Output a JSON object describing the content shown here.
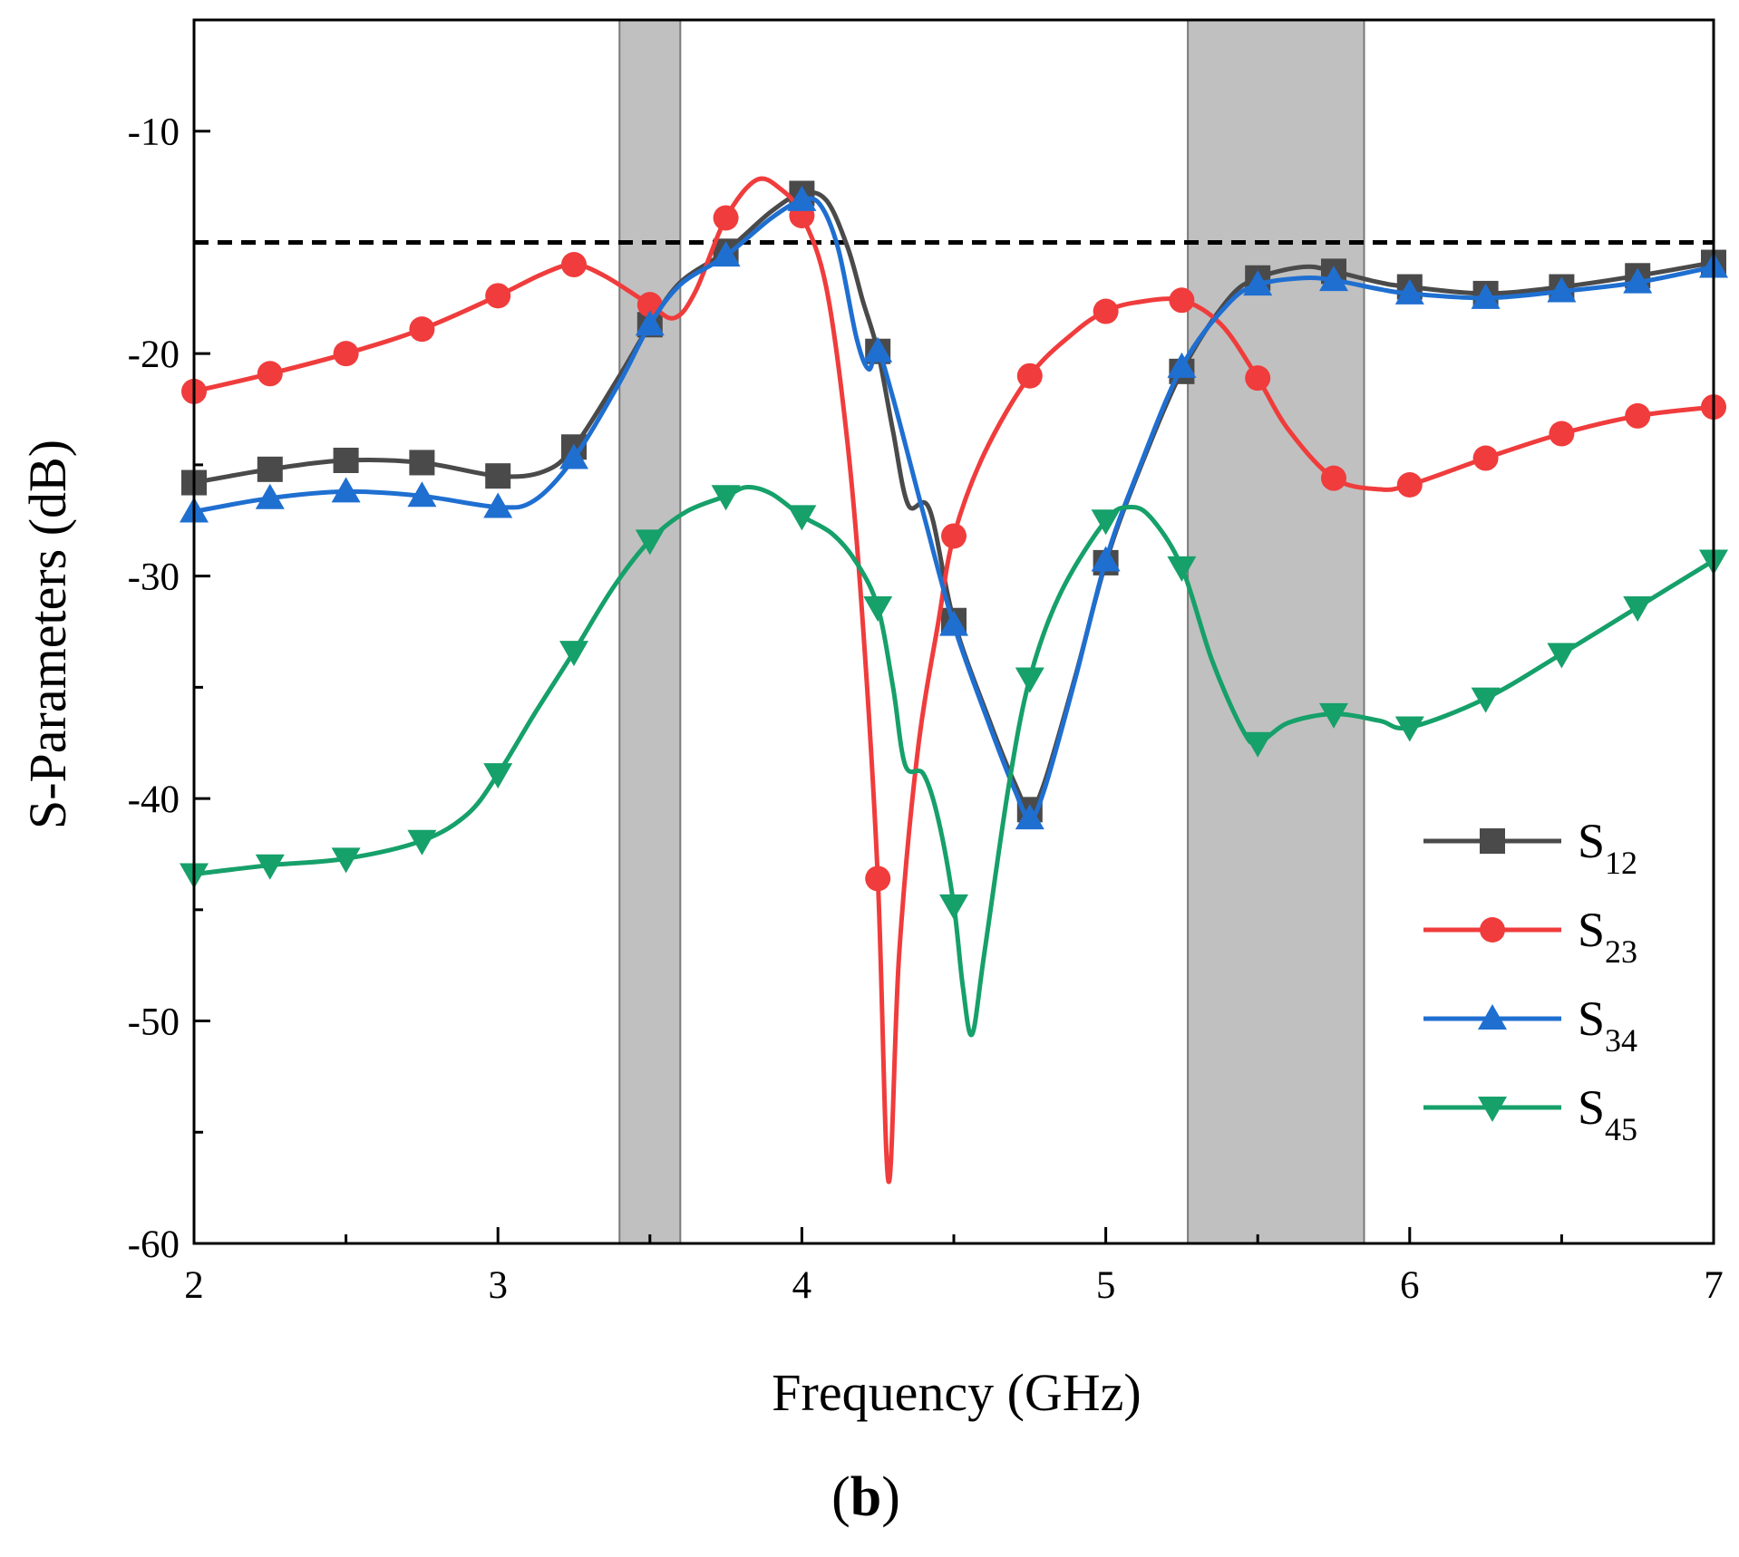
{
  "chart_data": {
    "type": "line",
    "caption": {
      "open": "(",
      "letter": "b",
      "close": ")"
    },
    "xlabel": "Frequency (GHz)",
    "ylabel": "S-Parameters (dB)",
    "xlim": [
      2,
      7
    ],
    "ylim": [
      -60,
      -5
    ],
    "x_ticks": [
      2,
      3,
      4,
      5,
      6,
      7
    ],
    "x_tick_labels": [
      "2",
      "3",
      "4",
      "5",
      "6",
      "7"
    ],
    "y_ticks": [
      -60,
      -50,
      -40,
      -30,
      -20,
      -10
    ],
    "y_tick_labels": [
      "-60",
      "-50",
      "-40",
      "-30",
      "-20",
      "-10"
    ],
    "reference_line": {
      "y": -15,
      "style": "dashed",
      "color": "#000000"
    },
    "shaded_bands": [
      {
        "x0": 3.4,
        "x1": 3.6,
        "color": "#c0c0c0"
      },
      {
        "x0": 5.27,
        "x1": 5.85,
        "color": "#c0c0c0"
      }
    ],
    "legend_position": "bottom-right",
    "series": [
      {
        "name": "S12",
        "label_main": "S",
        "label_sub": "12",
        "color": "#4a4a4a",
        "marker": "square",
        "curve": [
          [
            2,
            -25.8
          ],
          [
            2.25,
            -25.2
          ],
          [
            2.5,
            -24.8
          ],
          [
            2.75,
            -24.9
          ],
          [
            3,
            -25.5
          ],
          [
            3.15,
            -25.3
          ],
          [
            3.25,
            -24.2
          ],
          [
            3.4,
            -21.0
          ],
          [
            3.5,
            -18.7
          ],
          [
            3.6,
            -16.8
          ],
          [
            3.75,
            -15.4
          ],
          [
            3.9,
            -13.6
          ],
          [
            4,
            -12.8
          ],
          [
            4.08,
            -13.1
          ],
          [
            4.15,
            -15.2
          ],
          [
            4.2,
            -17.6
          ],
          [
            4.25,
            -19.9
          ],
          [
            4.3,
            -23.5
          ],
          [
            4.35,
            -26.8
          ],
          [
            4.42,
            -27.0
          ],
          [
            4.5,
            -32.0
          ],
          [
            4.62,
            -36.6
          ],
          [
            4.7,
            -39.3
          ],
          [
            4.75,
            -40.5
          ],
          [
            4.8,
            -39.2
          ],
          [
            4.9,
            -34.5
          ],
          [
            5,
            -29.4
          ],
          [
            5.1,
            -25.6
          ],
          [
            5.25,
            -20.8
          ],
          [
            5.4,
            -17.6
          ],
          [
            5.5,
            -16.6
          ],
          [
            5.65,
            -16.1
          ],
          [
            5.75,
            -16.3
          ],
          [
            5.9,
            -16.8
          ],
          [
            6,
            -17.0
          ],
          [
            6.25,
            -17.3
          ],
          [
            6.5,
            -17.0
          ],
          [
            6.75,
            -16.5
          ],
          [
            7,
            -15.9
          ]
        ],
        "points": [
          [
            2,
            -25.8
          ],
          [
            2.25,
            -25.2
          ],
          [
            2.5,
            -24.8
          ],
          [
            2.75,
            -24.9
          ],
          [
            3,
            -25.5
          ],
          [
            3.25,
            -24.2
          ],
          [
            3.5,
            -18.7
          ],
          [
            3.75,
            -15.4
          ],
          [
            4,
            -12.8
          ],
          [
            4.25,
            -19.9
          ],
          [
            4.5,
            -32.0
          ],
          [
            4.75,
            -40.5
          ],
          [
            5,
            -29.4
          ],
          [
            5.25,
            -20.8
          ],
          [
            5.5,
            -16.6
          ],
          [
            5.75,
            -16.3
          ],
          [
            6,
            -17.0
          ],
          [
            6.25,
            -17.3
          ],
          [
            6.5,
            -17.0
          ],
          [
            6.75,
            -16.5
          ],
          [
            7,
            -15.9
          ]
        ]
      },
      {
        "name": "S23",
        "label_main": "S",
        "label_sub": "23",
        "color": "#f03c3c",
        "marker": "circle",
        "curve": [
          [
            2,
            -21.7
          ],
          [
            2.25,
            -20.9
          ],
          [
            2.5,
            -20.0
          ],
          [
            2.75,
            -18.9
          ],
          [
            3,
            -17.4
          ],
          [
            3.15,
            -16.4
          ],
          [
            3.25,
            -16.0
          ],
          [
            3.35,
            -16.5
          ],
          [
            3.5,
            -17.8
          ],
          [
            3.58,
            -18.4
          ],
          [
            3.65,
            -17.2
          ],
          [
            3.75,
            -13.9
          ],
          [
            3.85,
            -12.2
          ],
          [
            3.93,
            -12.6
          ],
          [
            4,
            -13.8
          ],
          [
            4.08,
            -17.0
          ],
          [
            4.15,
            -24.0
          ],
          [
            4.2,
            -32.0
          ],
          [
            4.25,
            -43.6
          ],
          [
            4.285,
            -57.2
          ],
          [
            4.32,
            -47.0
          ],
          [
            4.38,
            -38.0
          ],
          [
            4.45,
            -32.0
          ],
          [
            4.5,
            -28.2
          ],
          [
            4.6,
            -24.5
          ],
          [
            4.75,
            -21.0
          ],
          [
            4.9,
            -19.0
          ],
          [
            5,
            -18.1
          ],
          [
            5.1,
            -17.7
          ],
          [
            5.25,
            -17.6
          ],
          [
            5.38,
            -18.7
          ],
          [
            5.5,
            -21.1
          ],
          [
            5.6,
            -23.4
          ],
          [
            5.75,
            -25.6
          ],
          [
            5.9,
            -26.1
          ],
          [
            6,
            -25.9
          ],
          [
            6.25,
            -24.7
          ],
          [
            6.5,
            -23.6
          ],
          [
            6.75,
            -22.8
          ],
          [
            7,
            -22.4
          ]
        ],
        "points": [
          [
            2,
            -21.7
          ],
          [
            2.25,
            -20.9
          ],
          [
            2.5,
            -20.0
          ],
          [
            2.75,
            -18.9
          ],
          [
            3,
            -17.4
          ],
          [
            3.25,
            -16.0
          ],
          [
            3.5,
            -17.8
          ],
          [
            3.75,
            -13.9
          ],
          [
            4,
            -13.8
          ],
          [
            4.25,
            -43.6
          ],
          [
            4.5,
            -28.2
          ],
          [
            4.75,
            -21.0
          ],
          [
            5,
            -18.1
          ],
          [
            5.25,
            -17.6
          ],
          [
            5.5,
            -21.1
          ],
          [
            5.75,
            -25.6
          ],
          [
            6,
            -25.9
          ],
          [
            6.25,
            -24.7
          ],
          [
            6.5,
            -23.6
          ],
          [
            6.75,
            -22.8
          ],
          [
            7,
            -22.4
          ]
        ]
      },
      {
        "name": "S34",
        "label_main": "S",
        "label_sub": "34",
        "color": "#1f6fd1",
        "marker": "triangle-up",
        "curve": [
          [
            2,
            -27.1
          ],
          [
            2.25,
            -26.5
          ],
          [
            2.5,
            -26.2
          ],
          [
            2.75,
            -26.4
          ],
          [
            3,
            -26.9
          ],
          [
            3.12,
            -26.6
          ],
          [
            3.25,
            -24.7
          ],
          [
            3.4,
            -21.3
          ],
          [
            3.5,
            -18.7
          ],
          [
            3.6,
            -16.9
          ],
          [
            3.75,
            -15.6
          ],
          [
            3.9,
            -13.9
          ],
          [
            4,
            -13.1
          ],
          [
            4.06,
            -13.3
          ],
          [
            4.12,
            -15.3
          ],
          [
            4.18,
            -19.3
          ],
          [
            4.22,
            -20.7
          ],
          [
            4.25,
            -19.9
          ],
          [
            4.3,
            -22.0
          ],
          [
            4.4,
            -27.2
          ],
          [
            4.5,
            -32.2
          ],
          [
            4.62,
            -36.8
          ],
          [
            4.7,
            -39.6
          ],
          [
            4.75,
            -40.9
          ],
          [
            4.8,
            -39.5
          ],
          [
            4.9,
            -34.6
          ],
          [
            5,
            -29.3
          ],
          [
            5.1,
            -25.5
          ],
          [
            5.25,
            -20.6
          ],
          [
            5.4,
            -17.8
          ],
          [
            5.5,
            -16.9
          ],
          [
            5.65,
            -16.6
          ],
          [
            5.75,
            -16.7
          ],
          [
            5.9,
            -17.1
          ],
          [
            6,
            -17.3
          ],
          [
            6.25,
            -17.5
          ],
          [
            6.5,
            -17.2
          ],
          [
            6.75,
            -16.8
          ],
          [
            7,
            -16.1
          ]
        ],
        "points": [
          [
            2,
            -27.1
          ],
          [
            2.25,
            -26.5
          ],
          [
            2.5,
            -26.2
          ],
          [
            2.75,
            -26.4
          ],
          [
            3,
            -26.9
          ],
          [
            3.25,
            -24.7
          ],
          [
            3.5,
            -18.7
          ],
          [
            3.75,
            -15.6
          ],
          [
            4,
            -13.1
          ],
          [
            4.25,
            -19.9
          ],
          [
            4.5,
            -32.2
          ],
          [
            4.75,
            -40.9
          ],
          [
            5,
            -29.3
          ],
          [
            5.25,
            -20.6
          ],
          [
            5.5,
            -16.9
          ],
          [
            5.75,
            -16.7
          ],
          [
            6,
            -17.3
          ],
          [
            6.25,
            -17.5
          ],
          [
            6.5,
            -17.2
          ],
          [
            6.75,
            -16.8
          ],
          [
            7,
            -16.1
          ]
        ]
      },
      {
        "name": "S45",
        "label_main": "S",
        "label_sub": "45",
        "color": "#16a06a",
        "marker": "triangle-down",
        "curve": [
          [
            2,
            -43.4
          ],
          [
            2.25,
            -43.0
          ],
          [
            2.5,
            -42.7
          ],
          [
            2.75,
            -41.9
          ],
          [
            2.9,
            -40.7
          ],
          [
            3,
            -38.9
          ],
          [
            3.12,
            -36.2
          ],
          [
            3.25,
            -33.4
          ],
          [
            3.38,
            -30.5
          ],
          [
            3.5,
            -28.4
          ],
          [
            3.62,
            -27.1
          ],
          [
            3.75,
            -26.4
          ],
          [
            3.82,
            -26.0
          ],
          [
            3.9,
            -26.3
          ],
          [
            4,
            -27.3
          ],
          [
            4.1,
            -28.1
          ],
          [
            4.18,
            -29.4
          ],
          [
            4.25,
            -31.4
          ],
          [
            4.3,
            -35.0
          ],
          [
            4.34,
            -38.5
          ],
          [
            4.4,
            -38.9
          ],
          [
            4.45,
            -41.0
          ],
          [
            4.5,
            -44.8
          ],
          [
            4.53,
            -48.5
          ],
          [
            4.56,
            -50.6
          ],
          [
            4.6,
            -47.0
          ],
          [
            4.68,
            -39.5
          ],
          [
            4.75,
            -34.6
          ],
          [
            4.85,
            -30.8
          ],
          [
            5,
            -27.5
          ],
          [
            5.08,
            -26.9
          ],
          [
            5.15,
            -27.4
          ],
          [
            5.25,
            -29.6
          ],
          [
            5.35,
            -33.8
          ],
          [
            5.45,
            -36.9
          ],
          [
            5.5,
            -37.5
          ],
          [
            5.6,
            -36.6
          ],
          [
            5.75,
            -36.2
          ],
          [
            5.9,
            -36.5
          ],
          [
            6,
            -36.8
          ],
          [
            6.25,
            -35.5
          ],
          [
            6.5,
            -33.5
          ],
          [
            6.75,
            -31.4
          ],
          [
            7,
            -29.3
          ]
        ],
        "points": [
          [
            2,
            -43.4
          ],
          [
            2.25,
            -43.0
          ],
          [
            2.5,
            -42.7
          ],
          [
            2.75,
            -41.9
          ],
          [
            3,
            -38.9
          ],
          [
            3.25,
            -33.4
          ],
          [
            3.5,
            -28.4
          ],
          [
            3.75,
            -26.4
          ],
          [
            4,
            -27.3
          ],
          [
            4.25,
            -31.4
          ],
          [
            4.5,
            -44.8
          ],
          [
            4.75,
            -34.6
          ],
          [
            5,
            -27.5
          ],
          [
            5.25,
            -29.6
          ],
          [
            5.5,
            -37.5
          ],
          [
            5.75,
            -36.2
          ],
          [
            6,
            -36.8
          ],
          [
            6.25,
            -35.5
          ],
          [
            6.5,
            -33.5
          ],
          [
            6.75,
            -31.4
          ],
          [
            7,
            -29.3
          ]
        ]
      }
    ]
  }
}
